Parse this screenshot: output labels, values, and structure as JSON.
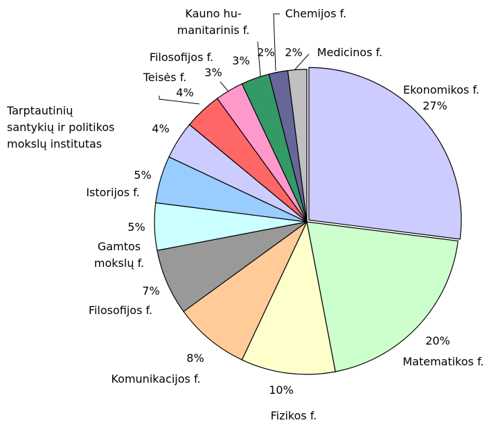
{
  "chart_data": {
    "type": "pie",
    "categories": [
      "Ekonomikos f.",
      "Matematikos f.",
      "Fizikos f.",
      "Komunikacijos f.",
      "Filosofijos f.",
      "Gamtos\nmokslų f.",
      "Istorijos f.",
      "Tarptautinių\nsantykių ir politikos\nmokslų institutas",
      "Teisės f.",
      "Filosofijos f.",
      "Kauno hu-\nmanitarinis f.",
      "Chemijos f.",
      "Medicinos f."
    ],
    "values": [
      27,
      20,
      10,
      8,
      7,
      5,
      5,
      4,
      4,
      3,
      3,
      2,
      2
    ],
    "value_labels": [
      "27%",
      "20%",
      "10%",
      "8%",
      "7%",
      "5%",
      "5%",
      "4%",
      "4%",
      "3%",
      "3%",
      "2%",
      "2%"
    ],
    "colors": [
      "#ccccff",
      "#ccffcc",
      "#ffffcc",
      "#ffcc99",
      "#999999",
      "#ccffff",
      "#99ccff",
      "#ccccff",
      "#ff6666",
      "#ff99cc",
      "#339966",
      "#666699",
      "#c0c0c0"
    ]
  }
}
